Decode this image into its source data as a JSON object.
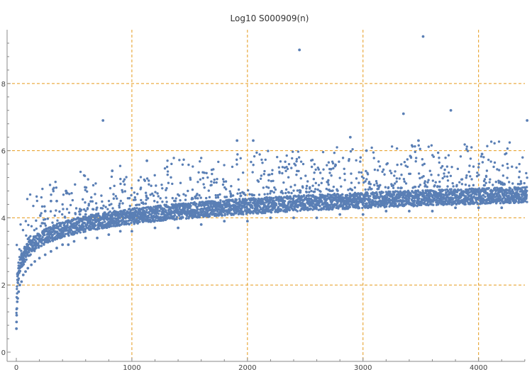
{
  "chart_data": {
    "type": "scatter",
    "title": "Log10 S000909(n)",
    "xlabel": "",
    "ylabel": "",
    "xlim": [
      0,
      4450
    ],
    "ylim": [
      0,
      9.6
    ],
    "x_ticks": [
      0,
      1000,
      2000,
      3000,
      4000
    ],
    "x_tick_labels": [
      "0",
      "1000",
      "2000",
      "3000",
      "4000"
    ],
    "y_ticks": [
      0,
      2,
      4,
      6,
      8
    ],
    "y_tick_labels": [
      "0",
      "2",
      "4",
      "6",
      "8"
    ],
    "grid": {
      "x": [
        1000,
        2000,
        3000,
        4000
      ],
      "y": [
        2,
        4,
        6,
        8
      ],
      "style": "dashed",
      "color": "#e69a1a"
    },
    "series": [
      {
        "color": "#5a7fb5",
        "trend": "y ≈ log10(n) + 0.86 (dense lower band, values spread upward)",
        "x": [
          1,
          2,
          3,
          5,
          8,
          12,
          20,
          30,
          45,
          60,
          80,
          100,
          130,
          160,
          200,
          250,
          300,
          350,
          400,
          450,
          500,
          600,
          700,
          800,
          900,
          1000,
          1200,
          1400,
          1600,
          1800,
          2000,
          2200,
          2400,
          2600,
          2800,
          3000,
          3200,
          3400,
          3600,
          3800,
          4000,
          4200,
          4400,
          250,
          300,
          350,
          430,
          600,
          750,
          830,
          1130,
          1910,
          2050,
          2450,
          2890,
          3030,
          3350,
          3480,
          3520,
          3760,
          4030,
          4420
        ],
        "y": [
          0.7,
          0.9,
          1.1,
          1.3,
          1.5,
          1.6,
          1.8,
          2.0,
          2.1,
          2.3,
          2.4,
          2.5,
          2.6,
          2.7,
          2.8,
          2.9,
          3.0,
          3.1,
          3.2,
          3.2,
          3.3,
          3.4,
          3.4,
          3.5,
          3.6,
          3.6,
          3.7,
          3.7,
          3.8,
          3.9,
          3.9,
          4.0,
          4.0,
          4.0,
          4.1,
          4.1,
          4.2,
          4.2,
          4.2,
          4.3,
          4.3,
          4.3,
          4.5,
          4.2,
          4.5,
          4.5,
          4.8,
          4.1,
          6.9,
          5.4,
          5.7,
          6.3,
          6.3,
          9.0,
          6.4,
          6.0,
          7.1,
          6.3,
          9.4,
          7.2,
          5.9,
          6.9
        ]
      }
    ]
  }
}
